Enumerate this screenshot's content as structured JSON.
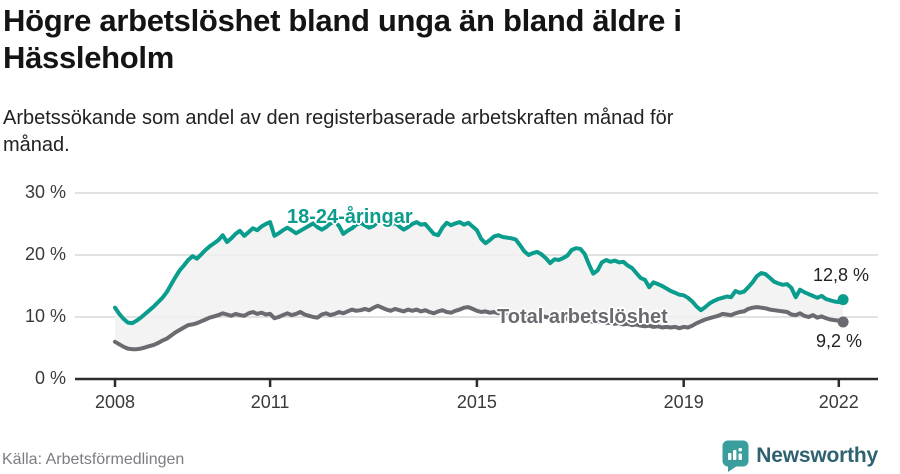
{
  "title": "Högre arbetslöshet bland unga än bland äldre i Hässleholm",
  "title_lines": [
    "Högre arbetslöshet bland unga än bland äldre i",
    "Hässleholm"
  ],
  "subtitle": "Arbetssökande som andel av den registerbaserade arbetskraften månad för månad.",
  "subtitle_lines": [
    "Arbetssökande som andel av den registerbaserade arbetskraften månad för",
    "månad."
  ],
  "footer": {
    "source": "Källa: Arbetsförmedlingen",
    "brand": "Newsworthy",
    "brand_icon": "bar-chart-speech-bubble-icon",
    "brand_badge_color": "#3a9e9c",
    "brand_wordmark_color": "#2e6270"
  },
  "colors": {
    "young_line": "#0a9c8c",
    "total_line": "#6a6a70",
    "band_fill": "#f0f0f0",
    "grid": "#d9d9d9",
    "axis": "#2b2b2b",
    "tick_text": "#3a3a3a"
  },
  "chart_data": {
    "type": "line",
    "x_unit": "month",
    "x_start": "2008-01",
    "x_end": "2022-02",
    "x_tick_labels": [
      "2008",
      "2011",
      "2015",
      "2019",
      "2022"
    ],
    "x_tick_years": [
      2008,
      2011,
      2015,
      2019,
      2022
    ],
    "y_tick_values": [
      0,
      10,
      20,
      30
    ],
    "y_tick_labels": [
      "0 %",
      "10 %",
      "20 %",
      "30 %"
    ],
    "ylim": [
      0,
      30
    ],
    "grid": "horizontal",
    "band_between_series": true,
    "series": [
      {
        "name": "18-24-åringar",
        "color": "#0a9c8c",
        "end_label": "12,8 %",
        "end_value": 12.8,
        "values": [
          11.5,
          10.5,
          9.7,
          9.1,
          9.0,
          9.4,
          9.9,
          10.5,
          11.1,
          11.7,
          12.4,
          13.1,
          14.0,
          15.2,
          16.4,
          17.5,
          18.3,
          19.2,
          19.8,
          19.4,
          20.1,
          20.8,
          21.4,
          21.9,
          22.4,
          23.2,
          22.1,
          22.7,
          23.4,
          23.9,
          23.1,
          23.7,
          24.3,
          24.0,
          24.6,
          25.0,
          25.3,
          23.1,
          23.5,
          24.0,
          24.4,
          24.0,
          23.5,
          23.9,
          24.3,
          24.7,
          25.1,
          24.5,
          24.1,
          24.5,
          25.1,
          25.4,
          24.7,
          23.4,
          23.9,
          24.3,
          24.9,
          25.2,
          24.8,
          24.4,
          24.7,
          25.3,
          25.8,
          25.3,
          24.8,
          25.2,
          24.6,
          24.1,
          24.5,
          25.0,
          25.3,
          24.9,
          25.0,
          24.2,
          23.4,
          23.2,
          24.4,
          25.2,
          24.8,
          25.1,
          25.3,
          24.9,
          25.2,
          24.6,
          24.0,
          22.6,
          21.9,
          22.4,
          23.0,
          23.2,
          22.9,
          22.8,
          22.7,
          22.5,
          21.6,
          20.6,
          20.0,
          20.3,
          20.5,
          20.1,
          19.5,
          18.7,
          19.3,
          19.2,
          19.5,
          19.9,
          20.8,
          21.1,
          21.0,
          20.2,
          18.5,
          17.0,
          17.5,
          18.8,
          19.2,
          18.9,
          19.1,
          18.8,
          18.9,
          18.3,
          17.9,
          17.1,
          16.3,
          16.0,
          14.8,
          15.6,
          15.3,
          15.0,
          14.6,
          14.2,
          13.9,
          13.6,
          13.5,
          13.1,
          12.5,
          11.7,
          11.1,
          11.6,
          12.2,
          12.6,
          12.9,
          13.1,
          13.3,
          13.2,
          14.2,
          13.9,
          14.1,
          14.8,
          15.6,
          16.6,
          17.1,
          16.9,
          16.3,
          15.7,
          15.4,
          15.2,
          15.3,
          14.7,
          13.2,
          14.4,
          14.0,
          13.7,
          13.4,
          13.1,
          13.4,
          12.9,
          12.7,
          12.5,
          12.4,
          12.8
        ]
      },
      {
        "name": "Total arbetslöshet",
        "color": "#6a6a70",
        "end_label": "9,2 %",
        "end_value": 9.2,
        "values": [
          6.0,
          5.6,
          5.2,
          4.9,
          4.8,
          4.8,
          4.9,
          5.1,
          5.3,
          5.5,
          5.8,
          6.2,
          6.5,
          7.0,
          7.5,
          7.9,
          8.3,
          8.7,
          8.8,
          9.0,
          9.3,
          9.6,
          9.9,
          10.1,
          10.3,
          10.6,
          10.4,
          10.2,
          10.5,
          10.3,
          10.2,
          10.6,
          10.8,
          10.5,
          10.7,
          10.4,
          10.5,
          9.8,
          10.0,
          10.3,
          10.6,
          10.3,
          10.5,
          10.8,
          10.4,
          10.2,
          10.0,
          9.9,
          10.4,
          10.6,
          10.3,
          10.5,
          10.8,
          10.6,
          10.9,
          11.2,
          11.0,
          11.1,
          11.3,
          11.1,
          11.5,
          11.8,
          11.5,
          11.2,
          11.0,
          11.3,
          11.1,
          10.9,
          11.2,
          11.0,
          11.2,
          10.9,
          11.1,
          10.8,
          10.6,
          10.9,
          11.1,
          10.8,
          10.7,
          11.0,
          11.2,
          11.5,
          11.6,
          11.3,
          11.0,
          10.8,
          10.9,
          10.7,
          10.8,
          10.6,
          10.7,
          10.5,
          10.6,
          10.4,
          10.5,
          10.3,
          10.2,
          10.3,
          10.1,
          10.2,
          10.0,
          9.9,
          10.0,
          9.8,
          9.9,
          9.7,
          9.8,
          9.6,
          9.5,
          9.6,
          9.4,
          9.2,
          9.3,
          9.1,
          9.0,
          9.1,
          8.9,
          9.0,
          8.8,
          8.9,
          8.7,
          8.8,
          8.6,
          8.5,
          8.6,
          8.4,
          8.5,
          8.3,
          8.4,
          8.3,
          8.4,
          8.2,
          8.4,
          8.3,
          8.6,
          9.0,
          9.3,
          9.6,
          9.8,
          10.0,
          10.2,
          10.5,
          10.4,
          10.3,
          10.6,
          10.8,
          10.9,
          11.3,
          11.5,
          11.6,
          11.5,
          11.4,
          11.2,
          11.1,
          11.0,
          10.9,
          10.8,
          10.4,
          10.3,
          10.6,
          10.2,
          10.0,
          10.3,
          9.9,
          10.1,
          9.8,
          9.6,
          9.5,
          9.4,
          9.2
        ]
      }
    ]
  }
}
